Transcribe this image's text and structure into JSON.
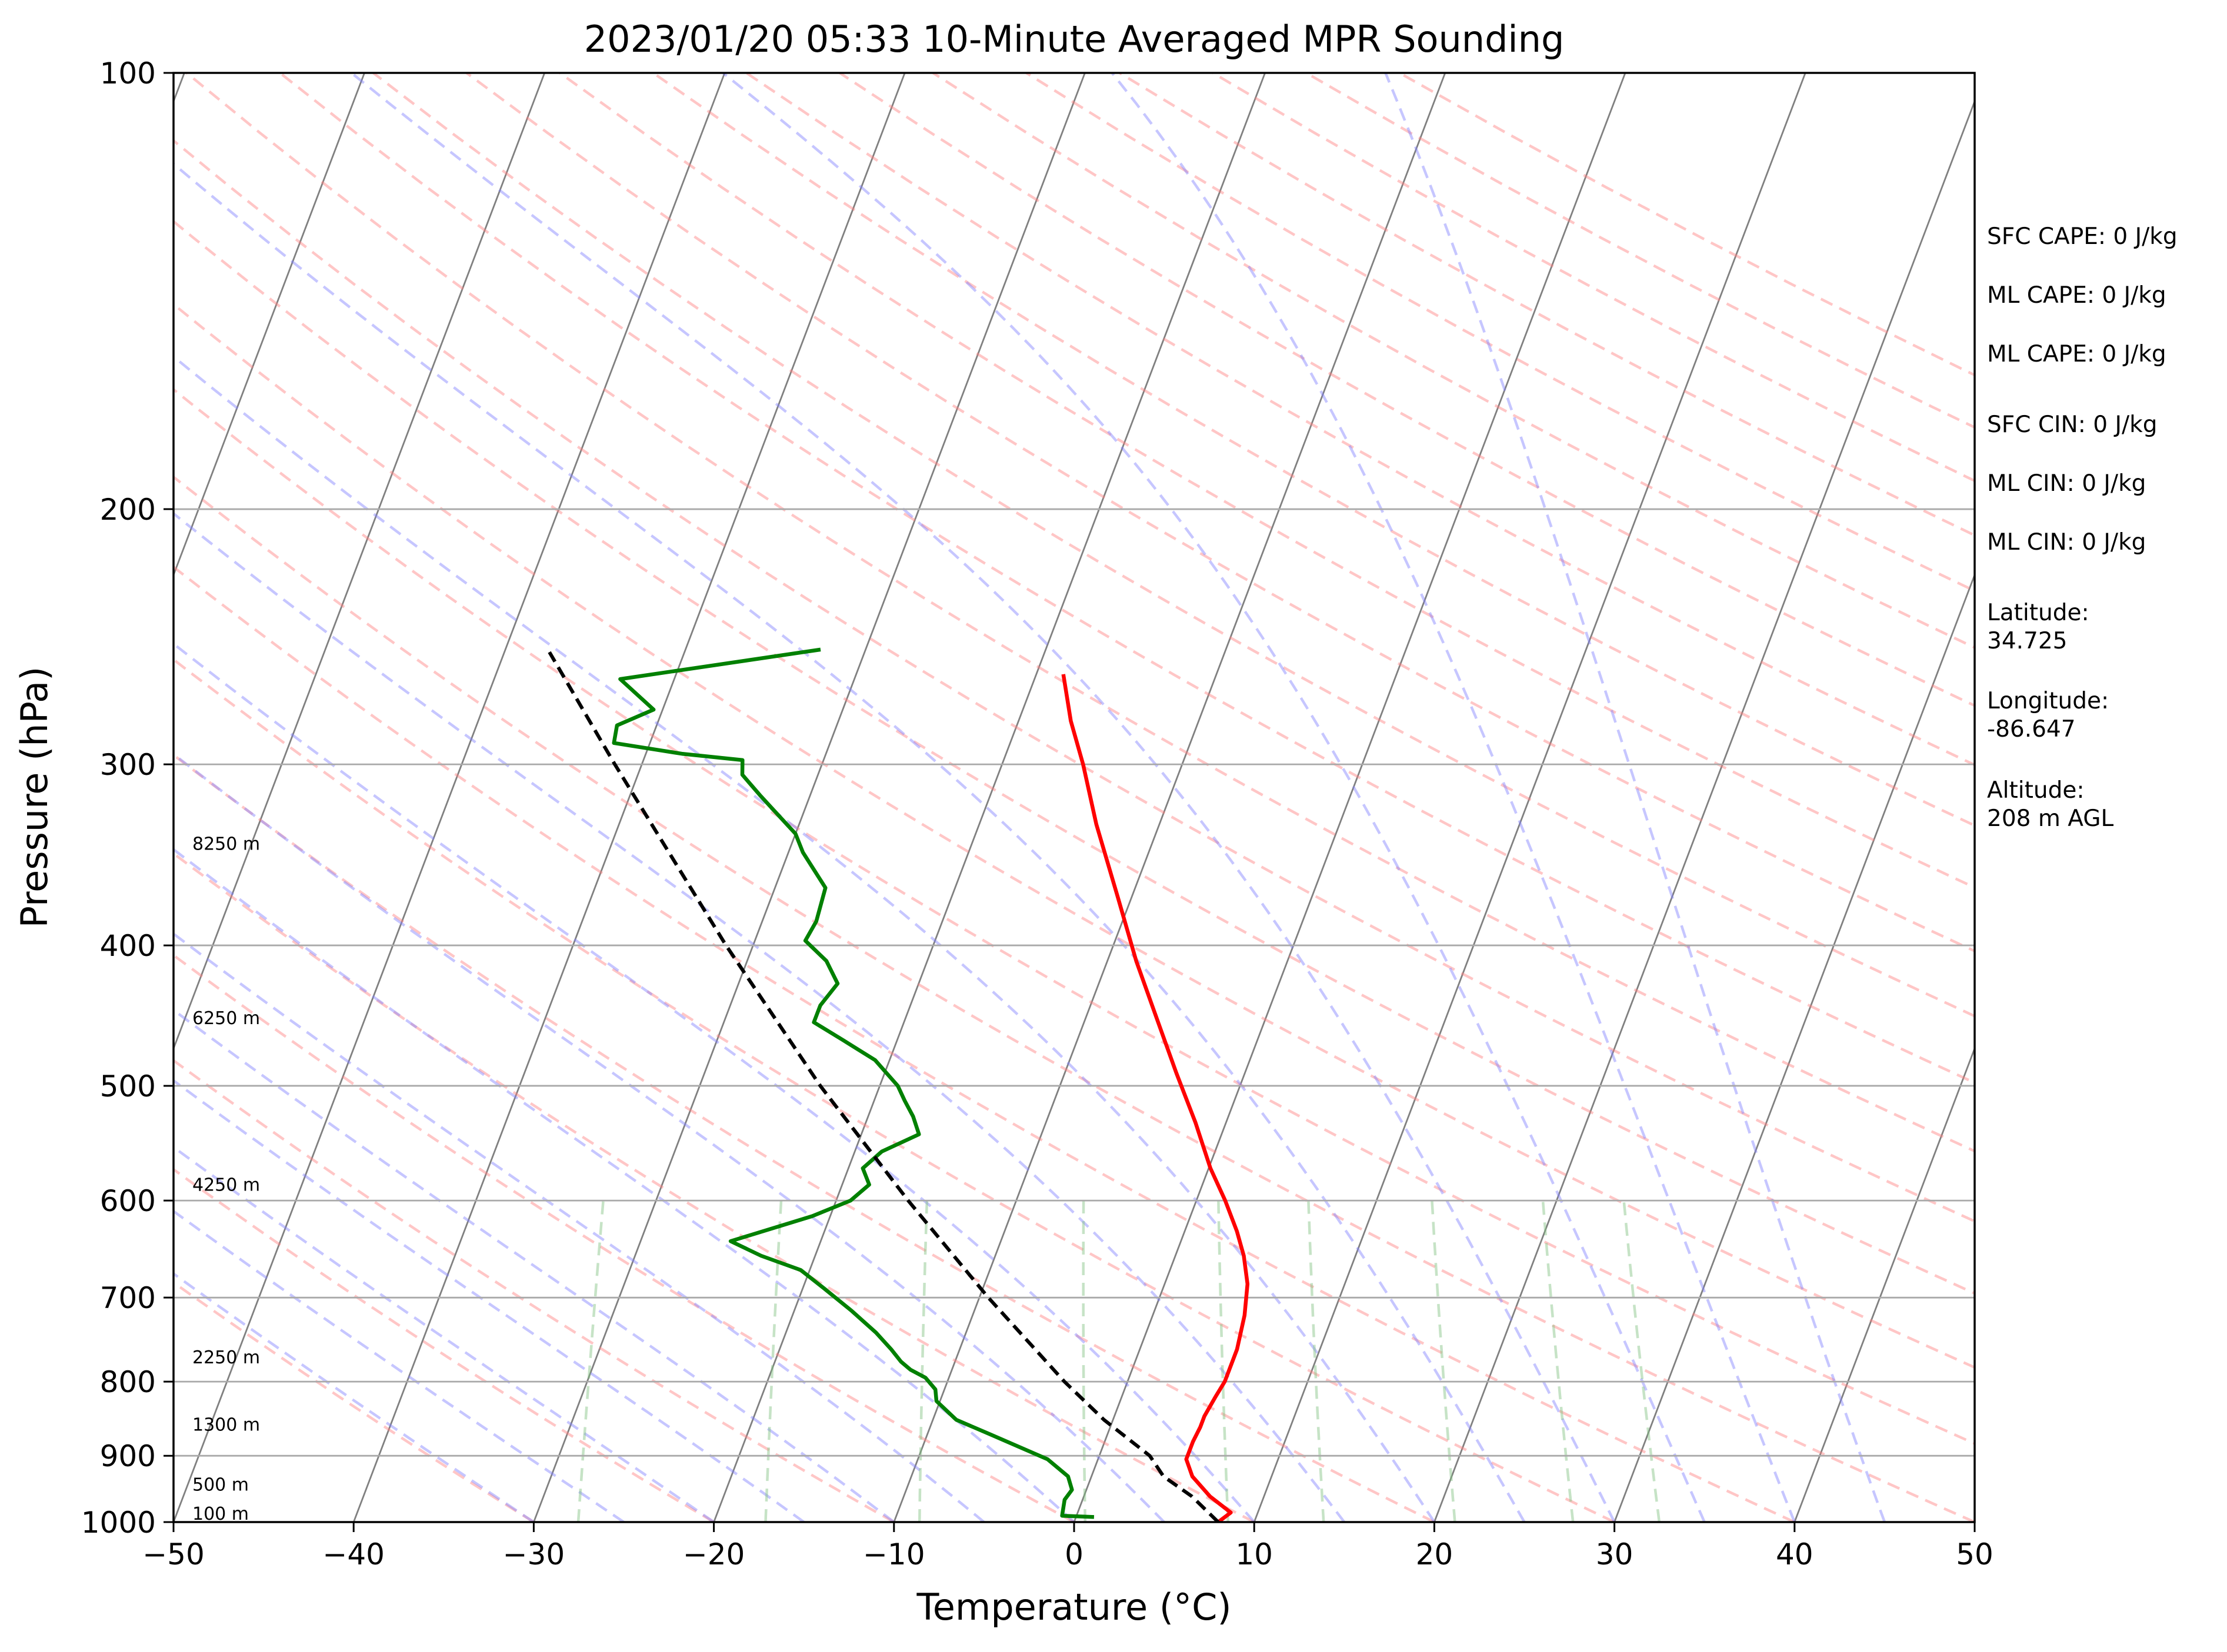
{
  "chart_data": {
    "type": "line",
    "chart_kind": "skew-t log-p sounding",
    "title": "2023/01/20 05:33 10-Minute Averaged MPR Sounding",
    "xlabel": "Temperature (°C)",
    "ylabel": "Pressure (hPa)",
    "xlim": [
      -50,
      50
    ],
    "ylim": [
      1000,
      100
    ],
    "y_scale": "log",
    "x_ticks": [
      -50,
      -40,
      -30,
      -20,
      -10,
      0,
      10,
      20,
      30,
      40,
      50
    ],
    "x_tick_labels": [
      "−50",
      "−40",
      "−30",
      "−20",
      "−10",
      "0",
      "10",
      "20",
      "30",
      "40",
      "50"
    ],
    "y_ticks": [
      1000,
      900,
      800,
      700,
      600,
      500,
      400,
      300,
      200,
      100
    ],
    "y_tick_labels": [
      "1000",
      "900",
      "800",
      "700",
      "600",
      "500",
      "400",
      "300",
      "200",
      "100"
    ],
    "grid": true,
    "series": [
      {
        "role": "temperature",
        "color": "#ff0000",
        "points": [
          [
            1000,
            8.0
          ],
          [
            985,
            8.5
          ],
          [
            960,
            7.0
          ],
          [
            930,
            5.6
          ],
          [
            905,
            4.9
          ],
          [
            880,
            4.9
          ],
          [
            860,
            5.0
          ],
          [
            845,
            5.0
          ],
          [
            820,
            5.2
          ],
          [
            800,
            5.4
          ],
          [
            760,
            5.4
          ],
          [
            720,
            5.1
          ],
          [
            685,
            4.6
          ],
          [
            655,
            3.8
          ],
          [
            630,
            2.9
          ],
          [
            600,
            1.6
          ],
          [
            570,
            0.1
          ],
          [
            530,
            -1.7
          ],
          [
            490,
            -3.8
          ],
          [
            450,
            -6.0
          ],
          [
            410,
            -8.4
          ],
          [
            370,
            -10.8
          ],
          [
            330,
            -13.5
          ],
          [
            300,
            -15.5
          ],
          [
            280,
            -17.1
          ],
          [
            260,
            -18.5
          ]
        ]
      },
      {
        "role": "dewpoint",
        "color": "#008000",
        "points": [
          [
            992,
            1.0
          ],
          [
            990,
            -0.8
          ],
          [
            965,
            -1.0
          ],
          [
            950,
            -0.8
          ],
          [
            930,
            -1.3
          ],
          [
            905,
            -2.8
          ],
          [
            870,
            -6.5
          ],
          [
            850,
            -8.7
          ],
          [
            825,
            -10.2
          ],
          [
            810,
            -10.5
          ],
          [
            795,
            -11.3
          ],
          [
            785,
            -12.3
          ],
          [
            775,
            -13.0
          ],
          [
            760,
            -13.8
          ],
          [
            740,
            -15.0
          ],
          [
            715,
            -16.8
          ],
          [
            690,
            -18.8
          ],
          [
            670,
            -20.5
          ],
          [
            655,
            -23.0
          ],
          [
            640,
            -25.0
          ],
          [
            615,
            -21.0
          ],
          [
            600,
            -19.2
          ],
          [
            585,
            -18.5
          ],
          [
            570,
            -19.2
          ],
          [
            555,
            -18.5
          ],
          [
            540,
            -16.8
          ],
          [
            525,
            -17.5
          ],
          [
            512,
            -18.3
          ],
          [
            500,
            -19.0
          ],
          [
            480,
            -20.8
          ],
          [
            465,
            -23.0
          ],
          [
            452,
            -25.0
          ],
          [
            440,
            -25.0
          ],
          [
            425,
            -24.5
          ],
          [
            410,
            -25.6
          ],
          [
            397,
            -27.2
          ],
          [
            385,
            -27.0
          ],
          [
            365,
            -27.2
          ],
          [
            345,
            -29.2
          ],
          [
            335,
            -30.0
          ],
          [
            322,
            -31.8
          ],
          [
            315,
            -32.8
          ],
          [
            305,
            -34.2
          ],
          [
            298,
            -34.5
          ],
          [
            295,
            -38.0
          ],
          [
            290,
            -42.0
          ],
          [
            282,
            -42.2
          ],
          [
            275,
            -40.5
          ],
          [
            262,
            -43.0
          ],
          [
            250,
            -32.5
          ]
        ]
      },
      {
        "role": "parcel path",
        "color": "#000000",
        "style": "dashed",
        "points": [
          [
            1000,
            8.0
          ],
          [
            960,
            6.0
          ],
          [
            930,
            4.0
          ],
          [
            900,
            2.8
          ],
          [
            850,
            -0.5
          ],
          [
            800,
            -3.5
          ],
          [
            700,
            -9.5
          ],
          [
            600,
            -16.0
          ],
          [
            500,
            -23.3
          ],
          [
            400,
            -31.5
          ],
          [
            300,
            -41.5
          ],
          [
            251,
            -47.5
          ]
        ]
      }
    ],
    "background_lines": {
      "isotherms": {
        "color": "#808080",
        "step_c": 10
      },
      "dry_adiabats": {
        "color": "#ff8080",
        "style": "dashed"
      },
      "moist_adiabats": {
        "color": "#8080ff",
        "style": "dashed"
      },
      "mixing_ratio_lines": {
        "color": "#80c080",
        "style": "dashed"
      }
    },
    "height_labels": [
      {
        "pressure": 1000,
        "text": "100 m"
      },
      {
        "pressure": 955,
        "text": "500 m"
      },
      {
        "pressure": 868,
        "text": "1300 m"
      },
      {
        "pressure": 780,
        "text": "2250 m"
      },
      {
        "pressure": 593,
        "text": "4250 m"
      },
      {
        "pressure": 455,
        "text": "6250 m"
      },
      {
        "pressure": 345,
        "text": "8250 m"
      }
    ],
    "annotations": [
      "SFC CAPE: 0 J/kg",
      "ML CAPE: 0 J/kg",
      "ML CAPE: 0 J/kg",
      "SFC CIN: 0 J/kg",
      "ML CIN: 0 J/kg",
      "ML CIN: 0 J/kg",
      "Latitude:",
      "34.725",
      "Longitude:",
      "-86.647",
      "Altitude:",
      "208 m AGL"
    ]
  }
}
